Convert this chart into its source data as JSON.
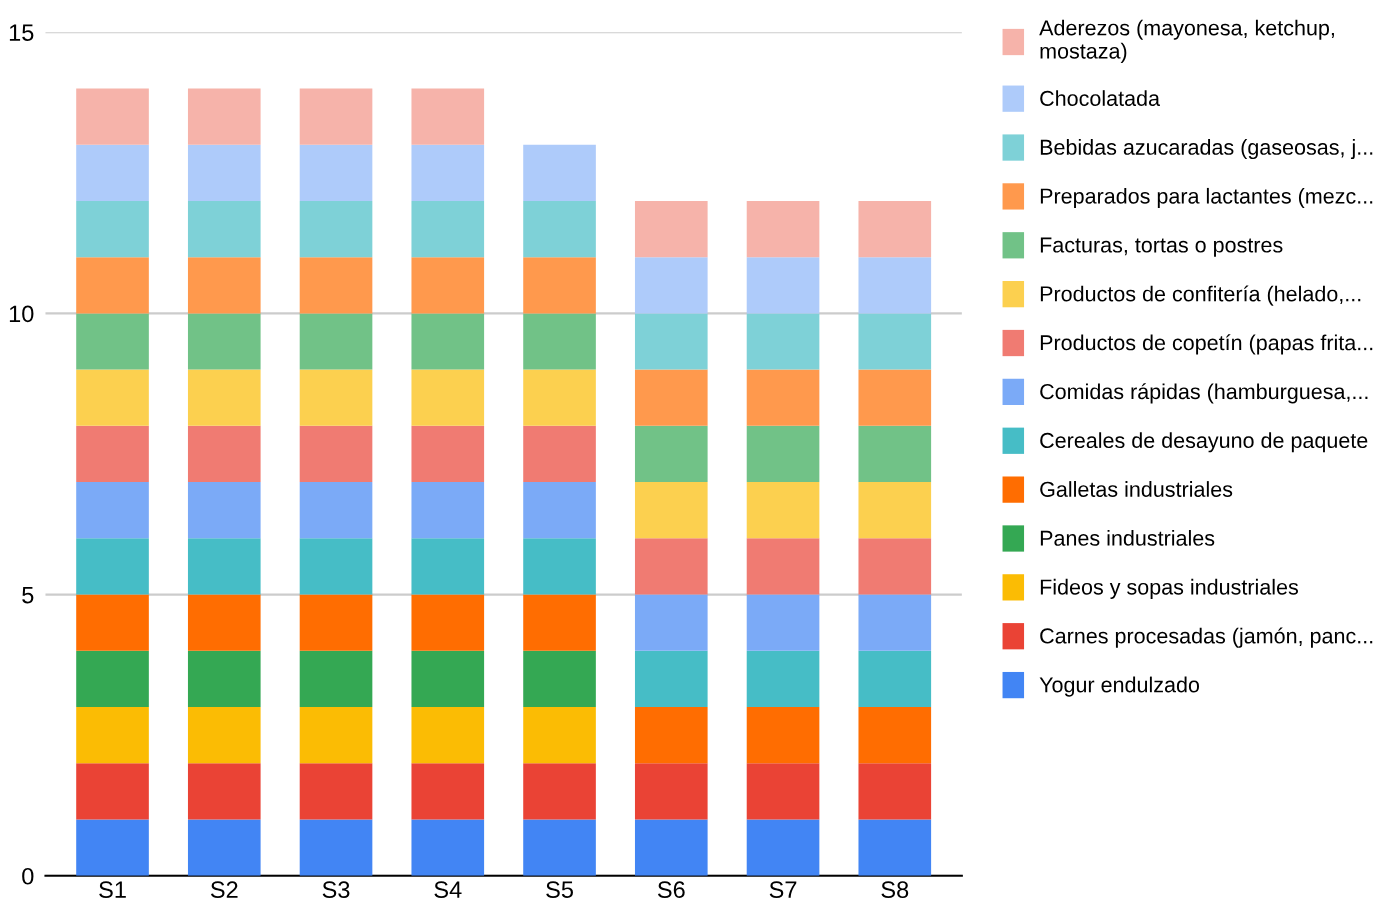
{
  "chart_data": {
    "type": "bar",
    "stacked": true,
    "categories": [
      "S1",
      "S2",
      "S3",
      "S4",
      "S5",
      "S6",
      "S7",
      "S8"
    ],
    "series": [
      {
        "name": "Yogur endulzado",
        "color": "#4285f4",
        "values": [
          1,
          1,
          1,
          1,
          1,
          1,
          1,
          1
        ]
      },
      {
        "name": "Carnes procesadas (jamón, panc...",
        "color": "#ea4335",
        "values": [
          1,
          1,
          1,
          1,
          1,
          1,
          1,
          1
        ]
      },
      {
        "name": "Fideos y sopas industriales",
        "color": "#fbbc04",
        "values": [
          1,
          1,
          1,
          1,
          1,
          null,
          null,
          null
        ]
      },
      {
        "name": "Panes industriales",
        "color": "#34a853",
        "values": [
          1,
          1,
          1,
          1,
          1,
          null,
          null,
          null
        ]
      },
      {
        "name": "Galletas industriales",
        "color": "#ff6d01",
        "values": [
          1,
          1,
          1,
          1,
          1,
          1,
          1,
          1
        ]
      },
      {
        "name": "Cereales de desayuno de paquete",
        "color": "#46bdc6",
        "values": [
          1,
          1,
          1,
          1,
          1,
          1,
          1,
          1
        ]
      },
      {
        "name": "Comidas rápidas (hamburguesa,...",
        "color": "#7baaf7",
        "values": [
          1,
          1,
          1,
          1,
          1,
          1,
          1,
          1
        ]
      },
      {
        "name": "Productos de copetín (papas frita...",
        "color": "#f07b72",
        "values": [
          1,
          1,
          1,
          1,
          1,
          1,
          1,
          1
        ]
      },
      {
        "name": "Productos de confitería (helado,...",
        "color": "#fcd04f",
        "values": [
          1,
          1,
          1,
          1,
          1,
          1,
          1,
          1
        ]
      },
      {
        "name": "Facturas, tortas o postres",
        "color": "#71c287",
        "values": [
          1,
          1,
          1,
          1,
          1,
          1,
          1,
          1
        ]
      },
      {
        "name": "Preparados para lactantes (mezc...",
        "color": "#ff994d",
        "values": [
          1,
          1,
          1,
          1,
          1,
          1,
          1,
          1
        ]
      },
      {
        "name": "Bebidas azucaradas (gaseosas, j...",
        "color": "#7ed1d7",
        "values": [
          1,
          1,
          1,
          1,
          1,
          1,
          1,
          1
        ]
      },
      {
        "name": "Chocolatada",
        "color": "#aecbfa",
        "values": [
          1,
          1,
          1,
          1,
          1,
          1,
          1,
          1
        ]
      },
      {
        "name": "Aderezos (mayonesa, ketchup,\nmostaza)",
        "color": "#f6b3aa",
        "values": [
          1,
          1,
          1,
          1,
          null,
          1,
          1,
          1
        ]
      }
    ],
    "ylim": [
      0,
      15
    ],
    "yticks": [
      0,
      5,
      10,
      15
    ],
    "grid": "y",
    "legend": "right"
  }
}
